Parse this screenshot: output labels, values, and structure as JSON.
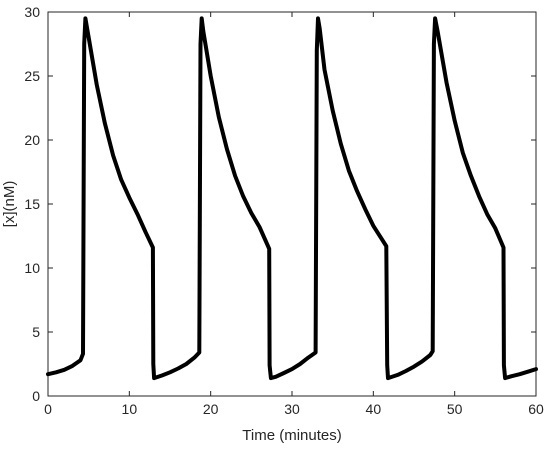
{
  "chart_data": {
    "type": "line",
    "xlabel": "Time (minutes)",
    "ylabel": "[x](nM)",
    "xlim": [
      0,
      60
    ],
    "ylim": [
      0,
      30
    ],
    "xticks": [
      0,
      10,
      20,
      30,
      40,
      50,
      60
    ],
    "yticks": [
      0,
      5,
      10,
      15,
      20,
      25,
      30
    ],
    "grid": false,
    "series": [
      {
        "color": "#000000",
        "x": [
          0,
          1,
          2,
          3,
          4,
          4.3,
          4.45,
          4.6,
          5,
          6,
          7,
          8,
          9,
          10,
          11,
          12,
          12.9,
          12.95,
          13.05,
          14,
          15,
          16,
          17,
          18,
          18.6,
          18.75,
          18.9,
          19.1,
          20,
          21,
          22,
          23,
          24,
          25,
          26,
          27.2,
          27.25,
          27.4,
          28,
          29,
          30,
          31,
          32,
          32.9,
          33.05,
          33.2,
          33.4,
          34,
          35,
          36,
          37,
          38,
          39,
          40,
          41.6,
          41.7,
          41.8,
          43,
          44,
          45,
          46,
          47,
          47.3,
          47.45,
          47.6,
          47.9,
          49,
          50,
          51,
          52,
          53,
          54,
          55,
          56.0,
          56.05,
          56.2,
          57,
          58,
          59,
          60
        ],
        "y": [
          1.7,
          1.85,
          2.05,
          2.35,
          2.8,
          3.3,
          27.5,
          29.5,
          28.0,
          24.3,
          21.3,
          18.8,
          16.9,
          15.5,
          14.2,
          12.8,
          11.6,
          2.5,
          1.4,
          1.6,
          1.85,
          2.15,
          2.5,
          3.0,
          3.4,
          27.5,
          29.5,
          28.5,
          25.0,
          21.8,
          19.3,
          17.2,
          15.6,
          14.3,
          13.2,
          11.5,
          2.4,
          1.4,
          1.5,
          1.8,
          2.1,
          2.5,
          3.0,
          3.4,
          27.0,
          29.5,
          28.7,
          25.5,
          22.3,
          19.7,
          17.6,
          16.0,
          14.6,
          13.3,
          11.7,
          2.4,
          1.4,
          1.65,
          1.95,
          2.3,
          2.7,
          3.2,
          3.5,
          27.5,
          29.5,
          28.5,
          24.5,
          21.5,
          19.0,
          17.2,
          15.6,
          14.2,
          13.1,
          11.6,
          2.4,
          1.4,
          1.55,
          1.7,
          1.9,
          2.1
        ]
      }
    ]
  }
}
